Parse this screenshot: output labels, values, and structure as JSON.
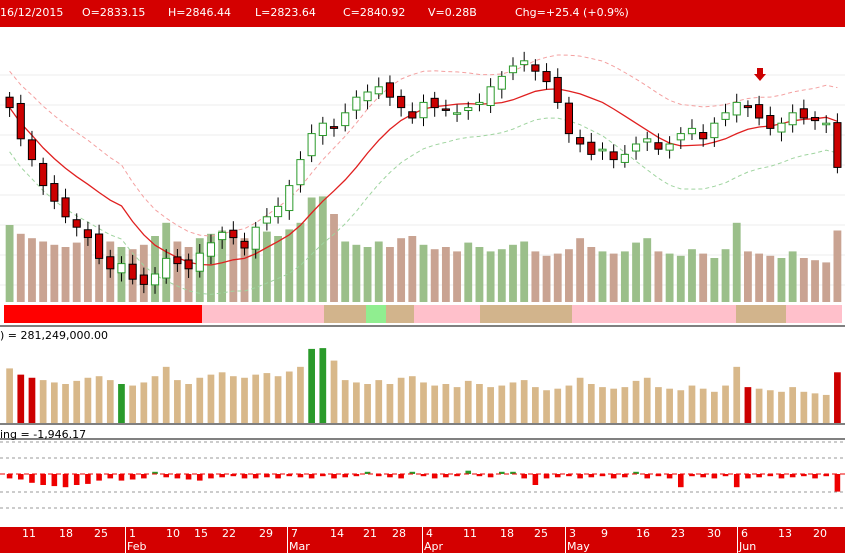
{
  "header": {
    "date": "16/12/2015",
    "open": "O=2833.15",
    "high": "H=2846.44",
    "low": "L=2823.64",
    "close": "C=2840.92",
    "volume": "V=0.28B",
    "change": "Chg=+25.4 (+0.9%)"
  },
  "volume_panel": {
    "label": ") = 281,249,000.00"
  },
  "indicator_panel": {
    "label": "ing = -1,946.17"
  },
  "colors": {
    "up_candle": "#2a9a2a",
    "down_candle": "#cc0000",
    "ma_line": "#e02020",
    "band_line": "#f4a0a0",
    "volume_up": "#9bbf8a",
    "volume_down": "#c9a392",
    "volume_beige": "#d8b88a",
    "header_bg": "#d40000"
  },
  "chart_data": {
    "type": "candlestick",
    "date_labels": [
      {
        "day": "11",
        "month": ""
      },
      {
        "day": "18",
        "month": ""
      },
      {
        "day": "25",
        "month": ""
      },
      {
        "day": "1",
        "month": "Feb"
      },
      {
        "day": "10",
        "month": ""
      },
      {
        "day": "15",
        "month": ""
      },
      {
        "day": "22",
        "month": ""
      },
      {
        "day": "29",
        "month": ""
      },
      {
        "day": "7",
        "month": "Mar"
      },
      {
        "day": "14",
        "month": ""
      },
      {
        "day": "21",
        "month": ""
      },
      {
        "day": "28",
        "month": ""
      },
      {
        "day": "4",
        "month": "Apr"
      },
      {
        "day": "11",
        "month": ""
      },
      {
        "day": "18",
        "month": ""
      },
      {
        "day": "25",
        "month": ""
      },
      {
        "day": "3",
        "month": "May"
      },
      {
        "day": "9",
        "month": ""
      },
      {
        "day": "16",
        "month": ""
      },
      {
        "day": "23",
        "month": ""
      },
      {
        "day": "30",
        "month": ""
      },
      {
        "day": "6",
        "month": "Jun"
      },
      {
        "day": "13",
        "month": ""
      },
      {
        "day": "20",
        "month": ""
      }
    ],
    "close_series": [
      2950,
      2890,
      2850,
      2800,
      2770,
      2740,
      2720,
      2700,
      2660,
      2640,
      2650,
      2620,
      2610,
      2630,
      2660,
      2650,
      2640,
      2670,
      2690,
      2710,
      2700,
      2680,
      2720,
      2740,
      2760,
      2800,
      2850,
      2900,
      2920,
      2910,
      2940,
      2970,
      2980,
      2990,
      2970,
      2950,
      2930,
      2960,
      2950,
      2945,
      2940,
      2950,
      2960,
      2990,
      3010,
      3030,
      3040,
      3020,
      3000,
      2960,
      2900,
      2880,
      2860,
      2870,
      2850,
      2860,
      2880,
      2890,
      2870,
      2880,
      2900,
      2910,
      2890,
      2920,
      2940,
      2960,
      2950,
      2930,
      2910,
      2920,
      2940,
      2930,
      2925,
      2920,
      2835
    ],
    "volume_bars": [
      0.7,
      0.62,
      0.58,
      0.55,
      0.52,
      0.5,
      0.54,
      0.58,
      0.6,
      0.55,
      0.5,
      0.48,
      0.52,
      0.6,
      0.72,
      0.55,
      0.5,
      0.58,
      0.62,
      0.65,
      0.6,
      0.58,
      0.62,
      0.64,
      0.6,
      0.66,
      0.72,
      0.95,
      0.96,
      0.8,
      0.55,
      0.52,
      0.5,
      0.55,
      0.5,
      0.58,
      0.6,
      0.52,
      0.48,
      0.5,
      0.46,
      0.54,
      0.5,
      0.46,
      0.48,
      0.52,
      0.55,
      0.46,
      0.42,
      0.44,
      0.48,
      0.58,
      0.5,
      0.46,
      0.44,
      0.46,
      0.54,
      0.58,
      0.46,
      0.44,
      0.42,
      0.48,
      0.44,
      0.4,
      0.48,
      0.72,
      0.46,
      0.44,
      0.42,
      0.4,
      0.46,
      0.4,
      0.38,
      0.36,
      0.65
    ],
    "indicator_bars": [
      -0.2,
      -0.25,
      -0.4,
      -0.5,
      -0.55,
      -0.6,
      -0.5,
      -0.45,
      -0.3,
      -0.2,
      -0.3,
      -0.25,
      -0.2,
      0.1,
      -0.15,
      -0.2,
      -0.25,
      -0.3,
      -0.2,
      -0.15,
      -0.1,
      -0.2,
      -0.2,
      -0.15,
      -0.2,
      -0.1,
      -0.15,
      -0.2,
      -0.1,
      -0.2,
      -0.15,
      -0.1,
      0.1,
      -0.1,
      -0.15,
      -0.2,
      0.1,
      -0.1,
      -0.2,
      -0.15,
      -0.1,
      0.15,
      -0.1,
      -0.15,
      0.1,
      0.1,
      -0.2,
      -0.5,
      -0.2,
      -0.15,
      -0.1,
      -0.2,
      -0.15,
      -0.1,
      -0.2,
      -0.15,
      0.1,
      -0.2,
      -0.1,
      -0.2,
      -0.6,
      -0.1,
      -0.15,
      -0.2,
      -0.1,
      -0.6,
      -0.2,
      -0.15,
      -0.1,
      -0.2,
      -0.15,
      -0.1,
      -0.2,
      -0.1,
      -0.8
    ]
  }
}
